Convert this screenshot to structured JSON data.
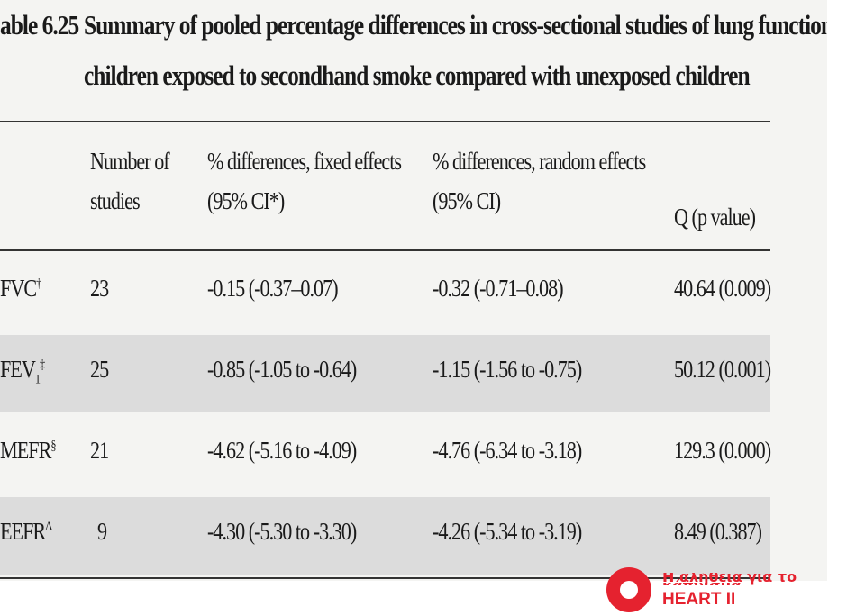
{
  "header": {
    "label": "able 6.25",
    "title_lines": [
      "Summary of pooled percentage differences in cross-sectional studies of lung function in",
      "children exposed to secondhand smoke compared with unexposed children"
    ]
  },
  "table": {
    "columns": [
      [
        "Number of",
        "studies"
      ],
      [
        "% differences, fixed effects",
        "(95% CI*)"
      ],
      [
        "% differences, random effects",
        "(95% CI)"
      ],
      [
        "Q (p value)"
      ]
    ],
    "rows": [
      {
        "label": "FVC",
        "sub": "",
        "sup": "†",
        "cells": [
          "23",
          "-0.15 (-0.37–0.07)",
          "-0.32 (-0.71–0.08)",
          "40.64 (0.009)"
        ]
      },
      {
        "label": "FEV",
        "sub": "1",
        "sup": "‡",
        "cells": [
          "25",
          "-0.85 (-1.05 to -0.64)",
          "-1.15 (-1.56 to -0.75)",
          "50.12 (0.001)"
        ]
      },
      {
        "label": "MEFR",
        "sub": "",
        "sup": "§",
        "cells": [
          "21",
          "-4.62 (-5.16 to -4.09)",
          "-4.76 (-6.34 to -3.18)",
          "129.3 (0.000)"
        ]
      },
      {
        "label": "EEFR",
        "sub": "",
        "sup": "Δ",
        "cells": [
          "9",
          "-4.30 (-5.30 to -3.30)",
          "-4.26 (-5.34 to -3.19)",
          "8.49 (0.387)"
        ]
      }
    ]
  },
  "logo": {
    "tagline": "Η αλήθεια για το κάπνισμα",
    "name": "HEART II"
  }
}
